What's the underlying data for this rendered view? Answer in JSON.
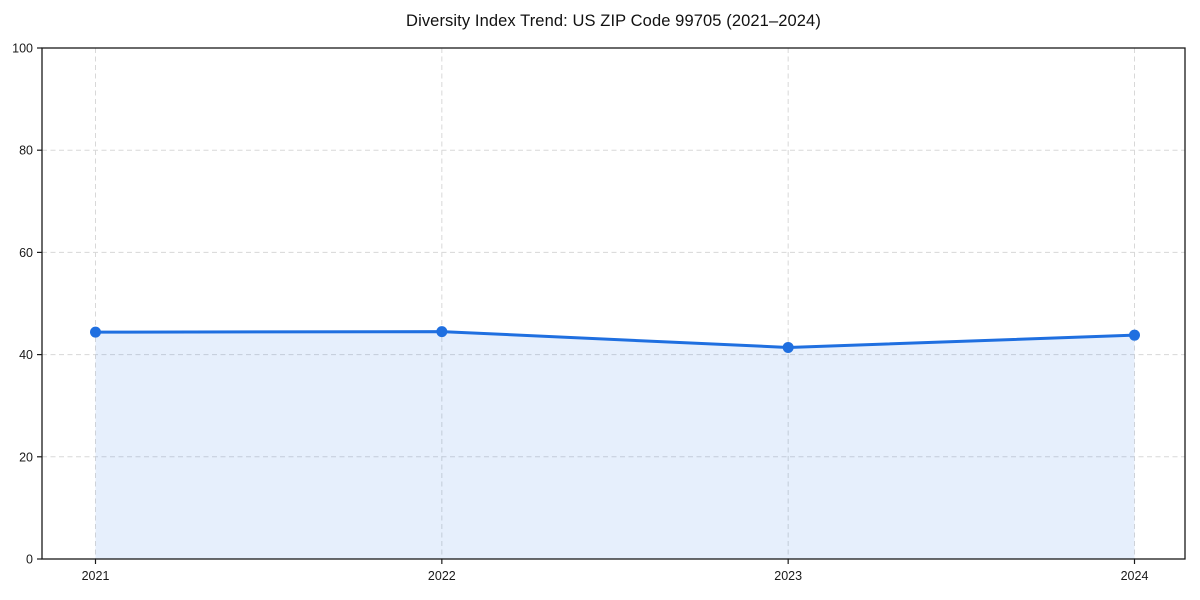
{
  "page": {
    "background": "#ffffff"
  },
  "chart_data": {
    "type": "area",
    "title": "Diversity Index Trend: US ZIP Code 99705 (2021–2024)",
    "xlabel": "",
    "ylabel": "",
    "x": [
      "2021",
      "2022",
      "2023",
      "2024"
    ],
    "series": [
      {
        "name": "Diversity Index",
        "values": [
          44.4,
          44.5,
          41.4,
          43.8
        ]
      }
    ],
    "ylim": [
      0,
      100
    ],
    "yticks": [
      0,
      20,
      40,
      60,
      80,
      100
    ],
    "legend": {
      "visible": false
    },
    "grid": {
      "horizontal": true,
      "vertical": true,
      "style": "dashed",
      "color": "#d8d8d8"
    },
    "marker": {
      "shape": "circle",
      "radius": 5.5
    },
    "line_width": 3,
    "colors": {
      "line": "#1f6fe0",
      "marker": "#1f6fe0",
      "area_fill": "rgba(31, 111, 224, 0.11)",
      "axis": "#1a1a1a",
      "tick_text": "#1a1a1a",
      "title_text": "#111111",
      "background": "#ffffff"
    }
  }
}
